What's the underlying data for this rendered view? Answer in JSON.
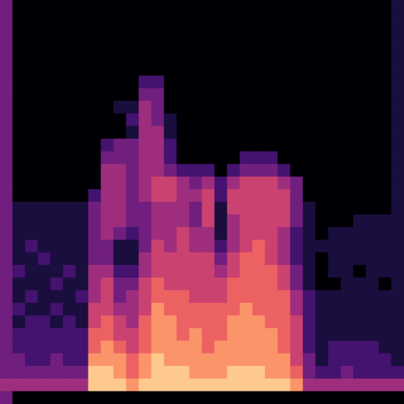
{
  "chart_data": {
    "type": "heatmap",
    "color": "magma",
    "color_range": [
      0,
      9
    ],
    "tick_labels": false,
    "grid": false,
    "cells": [
      [
        3,
        0,
        0,
        0,
        0,
        0,
        0,
        0,
        0,
        0,
        0,
        0,
        0,
        0,
        0,
        0,
        0,
        0,
        0,
        0,
        0,
        0,
        0,
        0,
        0,
        0,
        0,
        0,
        0,
        0,
        0,
        1
      ],
      [
        3,
        0,
        0,
        0,
        0,
        0,
        0,
        0,
        0,
        0,
        0,
        0,
        0,
        0,
        0,
        0,
        0,
        0,
        0,
        0,
        0,
        0,
        0,
        0,
        0,
        0,
        0,
        0,
        0,
        0,
        0,
        1
      ],
      [
        3,
        0,
        0,
        0,
        0,
        0,
        0,
        0,
        0,
        0,
        0,
        0,
        0,
        0,
        0,
        0,
        0,
        0,
        0,
        0,
        0,
        0,
        0,
        0,
        0,
        0,
        0,
        0,
        0,
        0,
        0,
        1
      ],
      [
        3,
        0,
        0,
        0,
        0,
        0,
        0,
        0,
        0,
        0,
        0,
        0,
        0,
        0,
        0,
        0,
        0,
        0,
        0,
        0,
        0,
        0,
        0,
        0,
        0,
        0,
        0,
        0,
        0,
        0,
        0,
        1
      ],
      [
        3,
        0,
        0,
        0,
        0,
        0,
        0,
        0,
        0,
        0,
        0,
        0,
        0,
        0,
        0,
        0,
        0,
        0,
        0,
        0,
        0,
        0,
        0,
        0,
        0,
        0,
        0,
        0,
        0,
        0,
        0,
        1
      ],
      [
        3,
        0,
        0,
        0,
        0,
        0,
        0,
        0,
        0,
        0,
        0,
        0,
        0,
        0,
        0,
        0,
        0,
        0,
        0,
        0,
        0,
        0,
        0,
        0,
        0,
        0,
        0,
        0,
        0,
        0,
        0,
        1
      ],
      [
        3,
        0,
        0,
        0,
        0,
        0,
        0,
        0,
        0,
        0,
        0,
        2,
        2,
        0,
        0,
        0,
        0,
        0,
        0,
        0,
        0,
        0,
        0,
        0,
        0,
        0,
        0,
        0,
        0,
        0,
        0,
        1
      ],
      [
        3,
        0,
        0,
        0,
        0,
        0,
        0,
        0,
        0,
        0,
        0,
        3,
        3,
        0,
        0,
        0,
        0,
        0,
        0,
        0,
        0,
        0,
        0,
        0,
        0,
        0,
        0,
        0,
        0,
        0,
        0,
        1
      ],
      [
        3,
        0,
        0,
        0,
        0,
        0,
        0,
        0,
        0,
        1,
        1,
        4,
        3,
        0,
        0,
        0,
        0,
        0,
        0,
        0,
        0,
        0,
        0,
        0,
        0,
        0,
        0,
        0,
        0,
        0,
        0,
        1
      ],
      [
        3,
        0,
        0,
        0,
        0,
        0,
        0,
        0,
        0,
        0,
        2,
        4,
        3,
        1,
        0,
        0,
        0,
        0,
        0,
        0,
        0,
        0,
        0,
        0,
        0,
        0,
        0,
        0,
        0,
        0,
        0,
        1
      ],
      [
        3,
        0,
        0,
        0,
        0,
        0,
        0,
        0,
        0,
        0,
        1,
        4,
        4,
        1,
        0,
        0,
        0,
        0,
        0,
        0,
        0,
        0,
        0,
        0,
        0,
        0,
        0,
        0,
        0,
        0,
        0,
        1
      ],
      [
        3,
        0,
        0,
        0,
        0,
        0,
        0,
        0,
        2,
        3,
        3,
        4,
        4,
        2,
        0,
        0,
        0,
        0,
        0,
        0,
        0,
        0,
        0,
        0,
        0,
        0,
        0,
        0,
        0,
        0,
        0,
        1
      ],
      [
        3,
        0,
        0,
        0,
        0,
        0,
        0,
        0,
        3,
        3,
        3,
        4,
        4,
        2,
        0,
        0,
        0,
        0,
        0,
        2,
        2,
        2,
        0,
        0,
        0,
        0,
        0,
        0,
        0,
        0,
        0,
        1
      ],
      [
        3,
        0,
        0,
        0,
        0,
        0,
        0,
        0,
        4,
        4,
        3,
        4,
        4,
        3,
        2,
        2,
        2,
        0,
        2,
        3,
        3,
        3,
        2,
        0,
        0,
        0,
        0,
        0,
        0,
        0,
        0,
        1
      ],
      [
        3,
        0,
        0,
        0,
        0,
        0,
        0,
        0,
        4,
        4,
        3,
        4,
        5,
        5,
        4,
        3,
        4,
        2,
        4,
        5,
        5,
        5,
        4,
        3,
        0,
        0,
        0,
        0,
        0,
        0,
        0,
        1
      ],
      [
        3,
        0,
        0,
        0,
        0,
        0,
        0,
        2,
        4,
        4,
        3,
        4,
        5,
        5,
        4,
        4,
        5,
        2,
        5,
        5,
        5,
        5,
        5,
        3,
        0,
        0,
        0,
        0,
        0,
        0,
        0,
        1
      ],
      [
        3,
        1,
        1,
        1,
        1,
        1,
        1,
        3,
        4,
        4,
        3,
        3,
        4,
        4,
        4,
        3,
        5,
        1,
        5,
        5,
        5,
        5,
        5,
        3,
        1,
        0,
        0,
        0,
        0,
        0,
        0,
        1
      ],
      [
        3,
        1,
        1,
        1,
        1,
        1,
        1,
        3,
        4,
        4,
        3,
        3,
        4,
        4,
        4,
        3,
        5,
        1,
        4,
        5,
        5,
        5,
        5,
        3,
        1,
        0,
        0,
        0,
        1,
        1,
        1,
        1
      ],
      [
        3,
        1,
        1,
        1,
        1,
        1,
        1,
        3,
        4,
        3,
        2,
        3,
        4,
        4,
        5,
        4,
        4,
        1,
        4,
        5,
        5,
        5,
        4,
        2,
        1,
        0,
        1,
        1,
        1,
        1,
        1,
        1
      ],
      [
        3,
        1,
        2,
        1,
        1,
        1,
        1,
        3,
        3,
        1,
        1,
        3,
        5,
        4,
        5,
        4,
        4,
        2,
        4,
        5,
        6,
        5,
        4,
        2,
        1,
        1,
        1,
        1,
        1,
        1,
        1,
        1
      ],
      [
        3,
        1,
        1,
        2,
        1,
        1,
        1,
        3,
        3,
        1,
        1,
        4,
        5,
        5,
        5,
        5,
        5,
        3,
        5,
        6,
        6,
        5,
        4,
        2,
        1,
        0,
        1,
        1,
        1,
        1,
        1,
        1
      ],
      [
        3,
        2,
        1,
        1,
        1,
        2,
        1,
        4,
        4,
        2,
        2,
        4,
        5,
        5,
        5,
        5,
        5,
        4,
        5,
        6,
        6,
        6,
        5,
        3,
        1,
        0,
        1,
        1,
        0,
        1,
        1,
        1
      ],
      [
        3,
        1,
        1,
        1,
        2,
        1,
        1,
        4,
        5,
        3,
        3,
        5,
        6,
        5,
        5,
        5,
        5,
        5,
        6,
        6,
        6,
        6,
        5,
        3,
        1,
        0,
        0,
        1,
        1,
        1,
        0,
        1
      ],
      [
        3,
        1,
        2,
        1,
        1,
        1,
        2,
        4,
        5,
        3,
        4,
        5,
        6,
        6,
        6,
        5,
        5,
        5,
        6,
        6,
        6,
        6,
        6,
        4,
        2,
        1,
        1,
        1,
        1,
        1,
        1,
        1
      ],
      [
        3,
        2,
        1,
        1,
        2,
        1,
        1,
        5,
        5,
        4,
        4,
        5,
        7,
        6,
        6,
        6,
        6,
        6,
        6,
        7,
        6,
        6,
        6,
        4,
        2,
        1,
        1,
        1,
        1,
        1,
        1,
        1
      ],
      [
        3,
        1,
        2,
        2,
        1,
        2,
        1,
        5,
        6,
        5,
        4,
        6,
        7,
        7,
        6,
        6,
        6,
        6,
        7,
        7,
        7,
        6,
        6,
        5,
        2,
        1,
        1,
        1,
        1,
        1,
        1,
        1
      ],
      [
        3,
        2,
        2,
        2,
        2,
        2,
        2,
        6,
        6,
        5,
        5,
        6,
        7,
        7,
        6,
        7,
        6,
        6,
        7,
        7,
        7,
        7,
        6,
        5,
        2,
        1,
        1,
        1,
        1,
        1,
        1,
        1
      ],
      [
        3,
        2,
        2,
        2,
        2,
        2,
        2,
        6,
        7,
        6,
        5,
        6,
        7,
        7,
        7,
        7,
        6,
        7,
        7,
        7,
        7,
        7,
        6,
        5,
        2,
        1,
        2,
        2,
        2,
        2,
        1,
        1
      ],
      [
        3,
        3,
        2,
        2,
        3,
        2,
        2,
        7,
        7,
        7,
        6,
        7,
        8,
        7,
        7,
        7,
        7,
        7,
        7,
        7,
        7,
        7,
        7,
        5,
        3,
        1,
        2,
        2,
        2,
        2,
        2,
        1
      ],
      [
        3,
        3,
        3,
        3,
        3,
        3,
        3,
        8,
        8,
        7,
        6,
        7,
        8,
        8,
        8,
        7,
        7,
        7,
        8,
        8,
        8,
        7,
        7,
        6,
        3,
        2,
        2,
        3,
        2,
        2,
        2,
        2
      ],
      [
        4,
        4,
        4,
        4,
        4,
        4,
        4,
        8,
        8,
        8,
        7,
        8,
        8,
        8,
        8,
        8,
        8,
        8,
        8,
        8,
        8,
        8,
        8,
        7,
        4,
        4,
        4,
        4,
        4,
        4,
        4,
        4
      ],
      [
        3,
        0,
        0,
        0,
        0,
        0,
        0,
        0,
        0,
        0,
        0,
        0,
        0,
        0,
        0,
        0,
        0,
        0,
        0,
        0,
        0,
        0,
        0,
        0,
        0,
        0,
        0,
        0,
        0,
        0,
        0,
        0
      ]
    ]
  }
}
